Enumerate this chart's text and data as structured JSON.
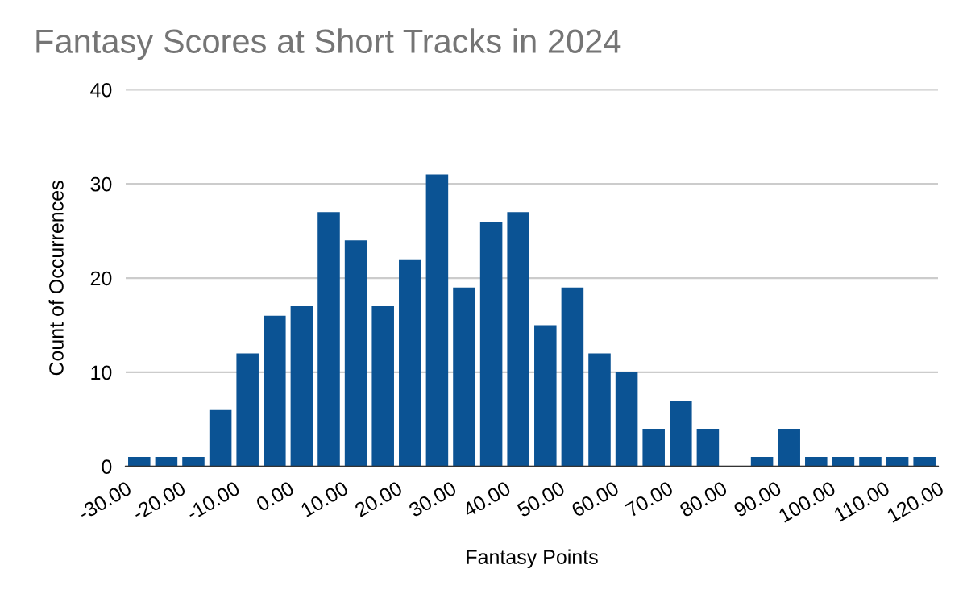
{
  "chart_data": {
    "type": "histogram",
    "title": "Fantasy Scores at Short Tracks in 2024",
    "xlabel": "Fantasy Points",
    "ylabel": "Count of Occurrences",
    "color": "#0b5394",
    "bins": [
      -30,
      -25,
      -20,
      -15,
      -10,
      -5,
      0,
      5,
      10,
      15,
      20,
      25,
      30,
      35,
      40,
      45,
      50,
      55,
      60,
      65,
      70,
      75,
      80,
      85,
      90,
      95,
      100,
      105,
      110,
      115,
      120
    ],
    "values": [
      1,
      1,
      1,
      6,
      12,
      16,
      17,
      27,
      24,
      17,
      22,
      31,
      19,
      26,
      27,
      15,
      19,
      12,
      10,
      4,
      7,
      4,
      0,
      1,
      4,
      1,
      1,
      1,
      1,
      1
    ],
    "xlim": [
      -30,
      120
    ],
    "xticks": [
      {
        "value": -30,
        "label": "-30.00"
      },
      {
        "value": -20,
        "label": "-20.00"
      },
      {
        "value": -10,
        "label": "-10.00"
      },
      {
        "value": 0,
        "label": "0.00"
      },
      {
        "value": 10,
        "label": "10.00"
      },
      {
        "value": 20,
        "label": "20.00"
      },
      {
        "value": 30,
        "label": "30.00"
      },
      {
        "value": 40,
        "label": "40.00"
      },
      {
        "value": 50,
        "label": "50.00"
      },
      {
        "value": 60,
        "label": "60.00"
      },
      {
        "value": 70,
        "label": "70.00"
      },
      {
        "value": 80,
        "label": "80.00"
      },
      {
        "value": 90,
        "label": "90.00"
      },
      {
        "value": 100,
        "label": "100.00"
      },
      {
        "value": 110,
        "label": "110.00"
      },
      {
        "value": 120,
        "label": "120.00"
      }
    ],
    "ylim": [
      0,
      40
    ],
    "yticks": [
      0,
      10,
      20,
      30,
      40
    ],
    "grid": "y"
  }
}
